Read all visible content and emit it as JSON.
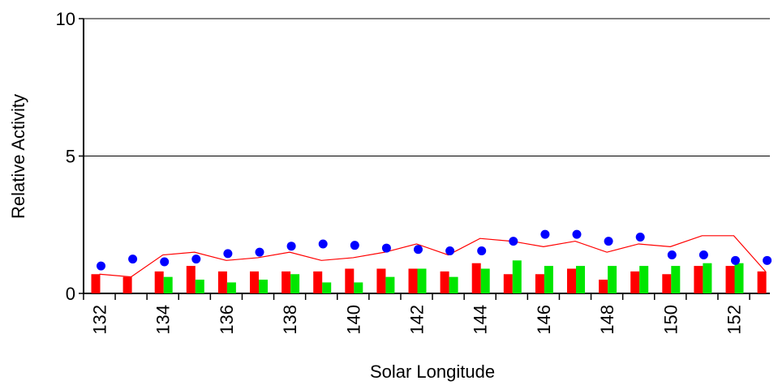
{
  "chart_data": {
    "type": "bar",
    "xlabel": "Solar Longitude",
    "ylabel": "Relative Activity",
    "ylim": [
      0,
      10
    ],
    "yticks": [
      0,
      5,
      10
    ],
    "x": [
      132,
      133,
      134,
      135,
      136,
      137,
      138,
      139,
      140,
      141,
      142,
      143,
      144,
      145,
      146,
      147,
      148,
      149,
      150,
      151,
      152,
      153
    ],
    "xtick_labels": [
      "132",
      "134",
      "136",
      "138",
      "140",
      "142",
      "144",
      "146",
      "148",
      "150",
      "152"
    ],
    "grid": "horizontal",
    "colors": {
      "red": "#ff0000",
      "green": "#00e600",
      "blue": "#0000ff",
      "line": "#ff0000"
    },
    "series": [
      {
        "type": "bar",
        "color_key": "red",
        "values": [
          0.7,
          0.6,
          0.8,
          1.0,
          0.8,
          0.8,
          0.8,
          0.8,
          0.9,
          0.9,
          0.9,
          0.8,
          1.1,
          0.7,
          0.7,
          0.9,
          0.5,
          0.8,
          0.7,
          1.0,
          1.0,
          0.8
        ]
      },
      {
        "type": "bar",
        "color_key": "green",
        "values": [
          null,
          null,
          0.6,
          0.5,
          0.4,
          0.5,
          0.7,
          0.4,
          0.4,
          0.6,
          0.9,
          0.6,
          0.9,
          1.2,
          1.0,
          1.0,
          1.0,
          1.0,
          1.0,
          1.1,
          1.1,
          null
        ]
      },
      {
        "type": "scatter",
        "color_key": "blue",
        "values": [
          1.0,
          1.25,
          1.15,
          1.25,
          1.45,
          1.5,
          1.72,
          1.8,
          1.75,
          1.65,
          1.6,
          1.55,
          1.55,
          1.9,
          2.15,
          2.15,
          1.9,
          2.05,
          1.4,
          1.4,
          1.2,
          1.2
        ]
      },
      {
        "type": "line",
        "color_key": "line",
        "values": [
          0.7,
          0.6,
          1.4,
          1.5,
          1.2,
          1.3,
          1.5,
          1.2,
          1.3,
          1.5,
          1.8,
          1.4,
          2.0,
          1.9,
          1.7,
          1.9,
          1.5,
          1.8,
          1.7,
          2.1,
          2.1,
          0.8
        ]
      }
    ]
  }
}
